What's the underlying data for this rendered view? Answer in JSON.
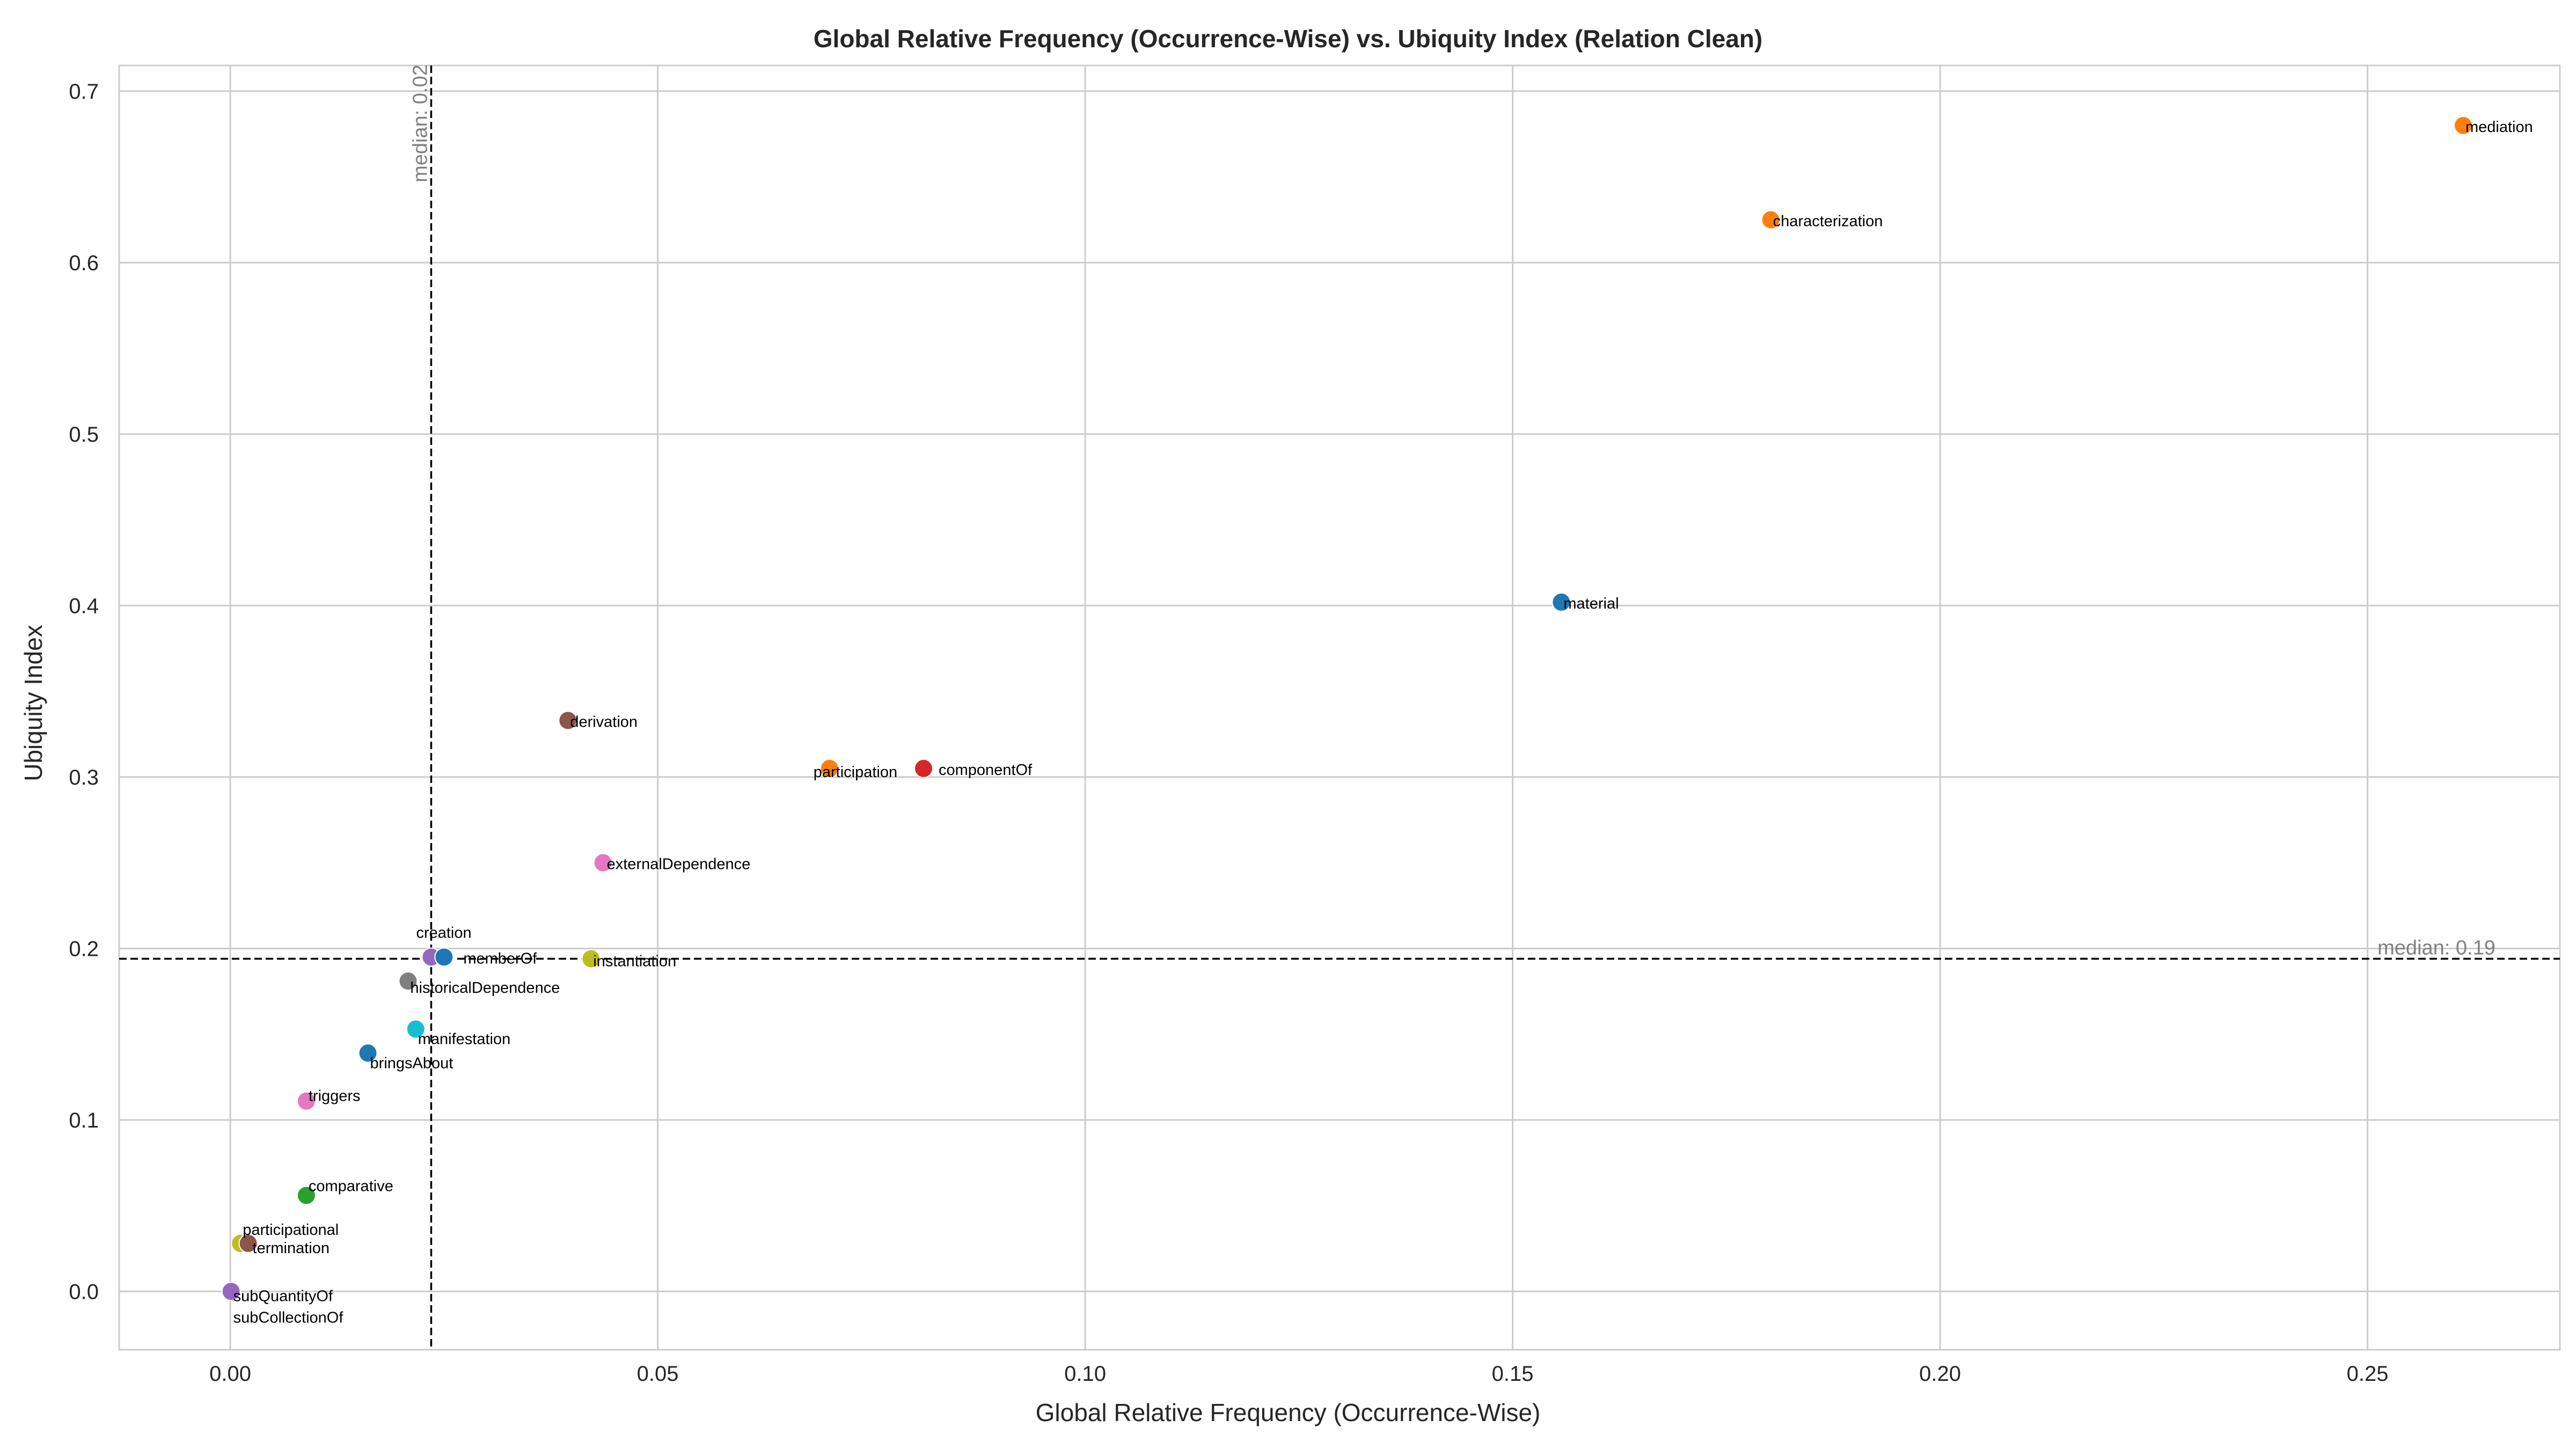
{
  "chart_data": {
    "type": "scatter",
    "title": "Global Relative Frequency (Occurrence-Wise) vs. Ubiquity Index (Relation Clean)",
    "xlabel": "Global Relative Frequency (Occurrence-Wise)",
    "ylabel": "Ubiquity Index",
    "xlim": [
      -0.013,
      0.2725
    ],
    "ylim": [
      -0.034,
      0.715
    ],
    "xticks": [
      0.0,
      0.05,
      0.1,
      0.15,
      0.2,
      0.25
    ],
    "xtick_labels": [
      "0.00",
      "0.05",
      "0.10",
      "0.15",
      "0.20",
      "0.25"
    ],
    "yticks": [
      0.0,
      0.1,
      0.2,
      0.3,
      0.4,
      0.5,
      0.6,
      0.7
    ],
    "ytick_labels": [
      "0.0",
      "0.1",
      "0.2",
      "0.3",
      "0.4",
      "0.5",
      "0.6",
      "0.7"
    ],
    "grid": true,
    "median_x": {
      "value": 0.0235,
      "label": "median: 0.02"
    },
    "median_y": {
      "value": 0.194,
      "label": "median: 0.19"
    },
    "points": [
      {
        "label": "mediation",
        "x": 0.2612,
        "y": 0.68,
        "color": "#ff7f0e",
        "dx": 4,
        "dy": 12
      },
      {
        "label": "characterization",
        "x": 0.1802,
        "y": 0.625,
        "color": "#ff7f0e",
        "dx": 4,
        "dy": 12
      },
      {
        "label": "material",
        "x": 0.1557,
        "y": 0.402,
        "color": "#1f77b4",
        "dx": 4,
        "dy": 12
      },
      {
        "label": "derivation",
        "x": 0.0395,
        "y": 0.333,
        "color": "#8c564b",
        "dx": 4,
        "dy": 12
      },
      {
        "label": "participation",
        "x": 0.0701,
        "y": 0.305,
        "color": "#ff7f0e",
        "dx": -30,
        "dy": 16
      },
      {
        "label": "componentOf",
        "x": 0.0811,
        "y": 0.305,
        "color": "#d62728",
        "dx": 28,
        "dy": 12
      },
      {
        "label": "externalDependence",
        "x": 0.0436,
        "y": 0.25,
        "color": "#e377c2",
        "dx": 7,
        "dy": 12
      },
      {
        "label": "creation",
        "x": 0.0235,
        "y": 0.195,
        "color": "#9467bd",
        "dx": -28,
        "dy": -36
      },
      {
        "label": "memberOf",
        "x": 0.025,
        "y": 0.195,
        "color": "#1f77b4",
        "dx": 36,
        "dy": 12
      },
      {
        "label": "instantiation",
        "x": 0.0422,
        "y": 0.194,
        "color": "#bcbd22",
        "dx": 4,
        "dy": 14
      },
      {
        "label": "historicalDependence",
        "x": 0.0208,
        "y": 0.181,
        "color": "#7f7f7f",
        "dx": 4,
        "dy": 22
      },
      {
        "label": "manifestation",
        "x": 0.0217,
        "y": 0.153,
        "color": "#17becf",
        "dx": 4,
        "dy": 28
      },
      {
        "label": "bringsAbout",
        "x": 0.0161,
        "y": 0.139,
        "color": "#1f77b4",
        "dx": 4,
        "dy": 28
      },
      {
        "label": "triggers",
        "x": 0.0089,
        "y": 0.111,
        "color": "#e377c2",
        "dx": 4,
        "dy": 0
      },
      {
        "label": "comparative",
        "x": 0.0089,
        "y": 0.056,
        "color": "#2ca02c",
        "dx": 4,
        "dy": -8
      },
      {
        "label": "participational",
        "x": 0.0012,
        "y": 0.028,
        "color": "#bcbd22",
        "dx": 4,
        "dy": -16
      },
      {
        "label": "termination",
        "x": 0.0021,
        "y": 0.028,
        "color": "#8c564b",
        "dx": 8,
        "dy": 18
      },
      {
        "label": "subQuantityOf",
        "x": 0.0001,
        "y": 0.0,
        "color": "#9467bd",
        "dx": 4,
        "dy": 18
      },
      {
        "label": "subCollectionOf",
        "x": 0.0001,
        "y": 0.0,
        "color": "#9467bd",
        "dx": 4,
        "dy": 58
      }
    ]
  }
}
